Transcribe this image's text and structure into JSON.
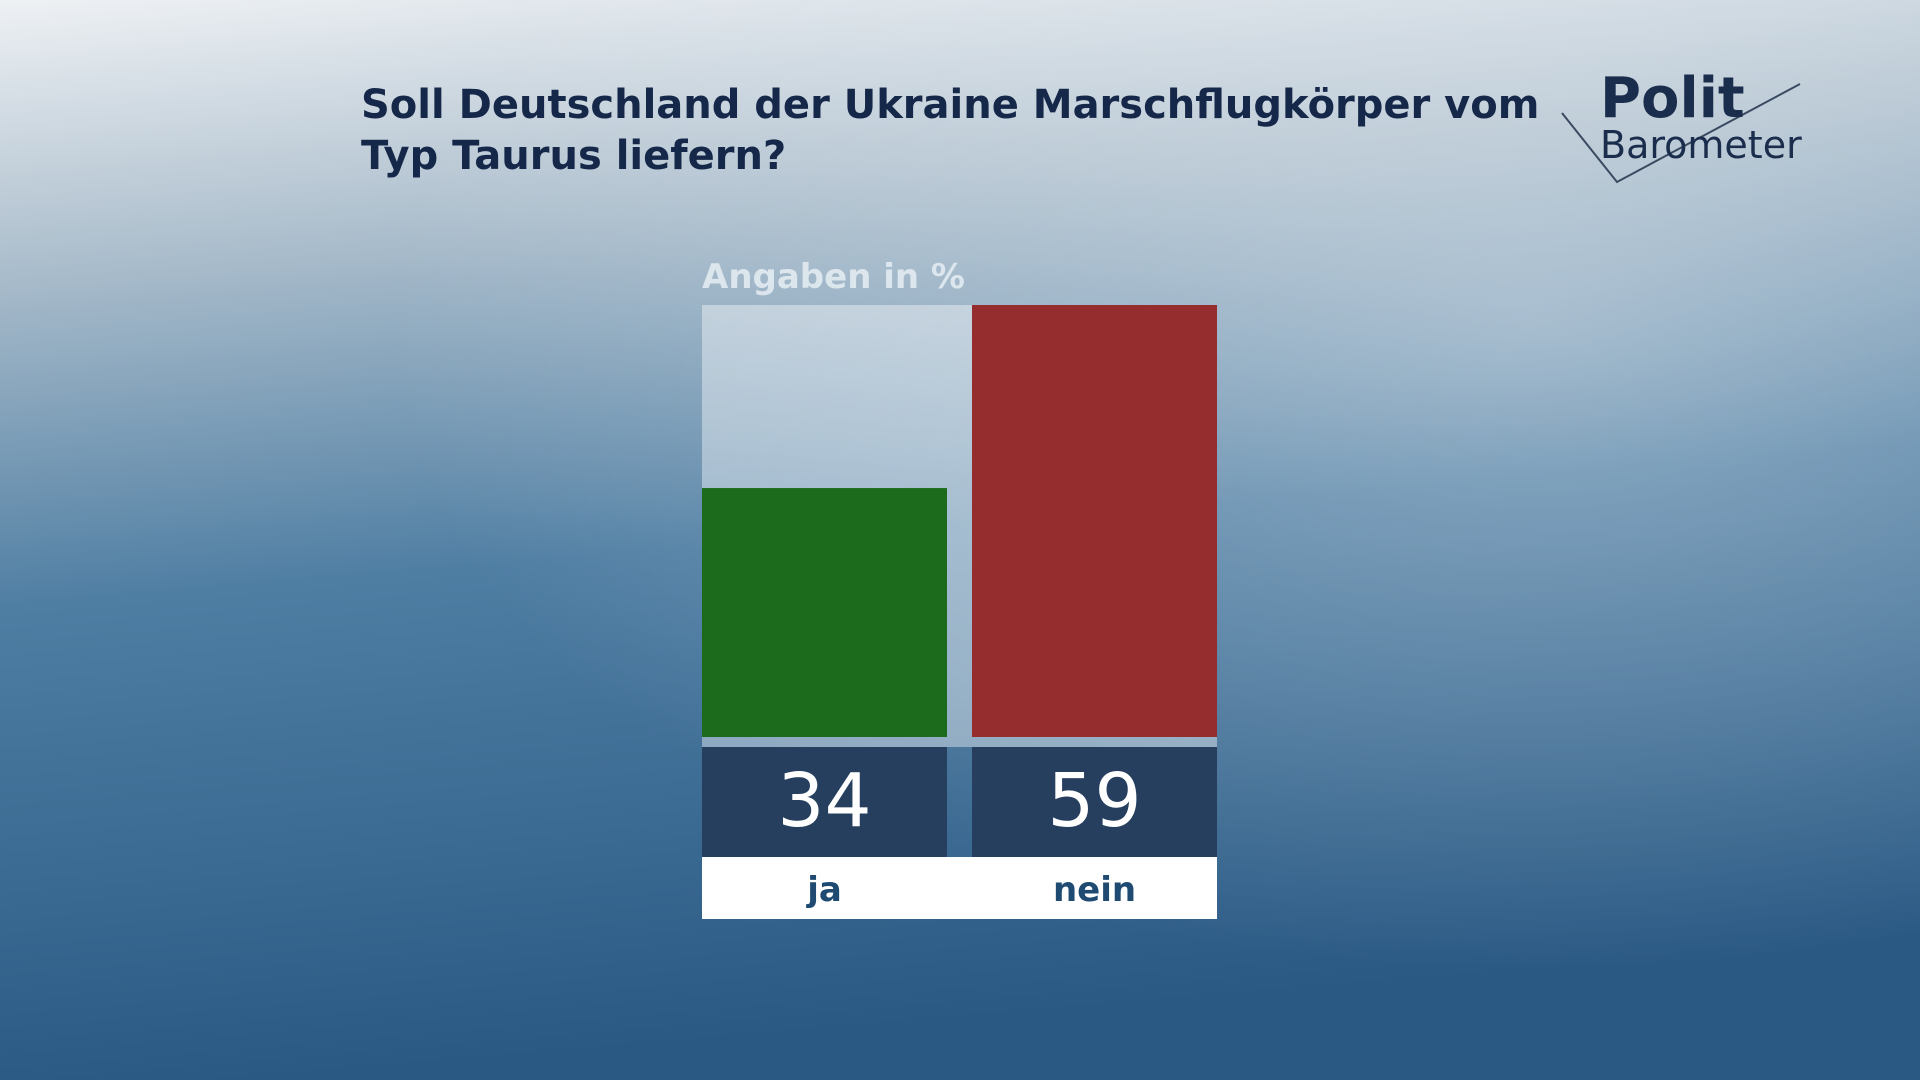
{
  "chart_data": {
    "type": "bar",
    "title": "Soll Deutschland der Ukraine Marschflugkörper vom Typ Taurus liefern?",
    "subtitle": "Angaben in %",
    "categories": [
      "ja",
      "nein"
    ],
    "values": [
      34,
      59
    ],
    "colors": [
      "#1c6b1c",
      "#952d2f"
    ]
  },
  "logo": {
    "line1": "Polit",
    "line2": "Barometer"
  }
}
